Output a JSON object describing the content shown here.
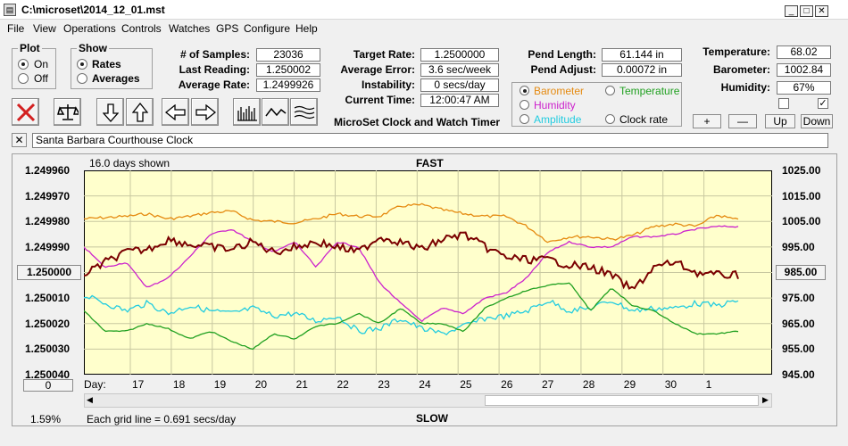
{
  "window": {
    "title": "C:\\microset\\2014_12_01.mst",
    "icon": "app-icon",
    "controls": [
      "_",
      "□",
      "✕"
    ]
  },
  "menu": [
    "File",
    "View",
    "Operations",
    "Controls",
    "Watches",
    "GPS",
    "Configure",
    "Help"
  ],
  "plot_group": {
    "title": "Plot",
    "options": [
      "On",
      "Off"
    ],
    "selected": "On"
  },
  "show_group": {
    "title": "Show",
    "options": [
      "Rates",
      "Averages"
    ],
    "selected": "Rates"
  },
  "stats": {
    "samples_label": "# of Samples:",
    "samples": "23036",
    "last_reading_label": "Last Reading:",
    "last_reading": "1.250002",
    "average_rate_label": "Average Rate:",
    "average_rate": "1.2499926",
    "target_rate_label": "Target Rate:",
    "target_rate": "1.2500000",
    "average_error_label": "Average Error:",
    "average_error": "3.6 sec/week",
    "instability_label": "Instability:",
    "instability": "0 secs/day",
    "current_time_label": "Current Time:",
    "current_time": "12:00:47 AM",
    "pend_length_label": "Pend Length:",
    "pend_length": "61.144 in",
    "pend_adjust_label": "Pend Adjust:",
    "pend_adjust": "0.00072 in",
    "temperature_label": "Temperature:",
    "temperature": "68.02",
    "barometer_label": "Barometer:",
    "barometer": "1002.84",
    "humidity_label": "Humidity:",
    "humidity": "67%"
  },
  "app_name": "MicroSet Clock and Watch Timer",
  "sensor_select": {
    "options": [
      {
        "label": "Barometer",
        "color": "#e58a10",
        "selected": true
      },
      {
        "label": "Temperature",
        "color": "#20a020",
        "selected": false
      },
      {
        "label": "Humidity",
        "color": "#cc22cc",
        "selected": false
      },
      {
        "label": "Amplitude",
        "color": "#22cce0",
        "selected": false
      },
      {
        "label": "Clock rate",
        "color": "#000000",
        "selected": false
      }
    ]
  },
  "scale_buttons": [
    "+",
    "—",
    "Up",
    "Down"
  ],
  "toolbar_icons": [
    "stop-icon",
    "balance-icon",
    "arrow-down-icon",
    "arrow-up-icon",
    "arrow-left-icon",
    "arrow-right-icon",
    "bars-icon",
    "wave-icon",
    "multi-wave-icon"
  ],
  "clock_name": "Santa Barbara Courthouse Clock",
  "chart_top_left": "16.0 days shown",
  "chart_top": "FAST",
  "chart_bottom": "SLOW",
  "chart_bottom_left": "Each grid line = 0.691 secs/day",
  "chart_percent": "1.59%",
  "left_box": "1.250000",
  "right_box": "985.00",
  "zero_button": "0",
  "day_label": "Day:",
  "colors": {
    "barometer": "#e58a10",
    "temperature": "#20a020",
    "humidity": "#cc22cc",
    "amplitude": "#22cce0",
    "rate": "#7a0000",
    "plot_bg": "#ffffcc"
  },
  "chart_data": {
    "type": "line",
    "x_label": "Day:",
    "x_ticks": [
      "17",
      "18",
      "19",
      "20",
      "21",
      "22",
      "23",
      "24",
      "25",
      "26",
      "27",
      "28",
      "29",
      "30",
      "1"
    ],
    "y_left_ticks": [
      "1.249960",
      "1.249970",
      "1.249980",
      "1.249990",
      "1.250000",
      "1.250010",
      "1.250020",
      "1.250030",
      "1.250040"
    ],
    "y_right_ticks": [
      "1025.00",
      "1015.00",
      "1005.00",
      "995.00",
      "985.00",
      "975.00",
      "965.00",
      "955.00",
      "945.00"
    ],
    "y_left_range": [
      1.24996,
      1.25004
    ],
    "y_right_range": [
      945,
      1025
    ],
    "series": [
      {
        "name": "Barometer",
        "color": "#e58a10",
        "values": [
          1006,
          1006.5,
          1007,
          1008,
          1006,
          1007,
          1008.5,
          1009,
          1005.5,
          1005,
          1004.5,
          1006,
          1008,
          1007,
          1007,
          1011,
          1011.5,
          1009.5,
          1008,
          1007,
          1007,
          1003,
          997,
          999,
          999,
          998,
          999.5,
          1003,
          1004,
          1003,
          1007.5,
          1005.5
        ]
      },
      {
        "name": "Humidity",
        "color": "#cc22cc",
        "values": [
          1.24999,
          1.249998,
          1.249996,
          1.250006,
          1.250002,
          1.249994,
          1.249985,
          1.249983,
          1.249988,
          1.249992,
          1.249988,
          1.249998,
          1.249988,
          1.24999,
          1.250004,
          1.250012,
          1.250019,
          1.250014,
          1.250016,
          1.25001,
          1.250008,
          1.250002,
          1.249992,
          1.249988,
          1.24999,
          1.24999,
          1.249986,
          1.249986,
          1.249985,
          1.249983,
          1.249982,
          1.249982
        ]
      },
      {
        "name": "Amplitude",
        "color": "#22cce0",
        "values": [
          1.250009,
          1.250012,
          1.250015,
          1.250012,
          1.250016,
          1.250013,
          1.250015,
          1.250016,
          1.250014,
          1.250017,
          1.250016,
          1.250019,
          1.250017,
          1.250023,
          1.250022,
          1.250018,
          1.250022,
          1.250024,
          1.250021,
          1.250018,
          1.250017,
          1.250015,
          1.250011,
          1.250015,
          1.250014,
          1.250011,
          1.250015,
          1.250014,
          1.250014,
          1.250012,
          1.250013,
          1.250011
        ]
      },
      {
        "name": "Temperature",
        "color": "#20a020",
        "values": [
          1.250015,
          1.250023,
          1.250023,
          1.25002,
          1.250022,
          1.250026,
          1.250023,
          1.250027,
          1.25003,
          1.250024,
          1.250026,
          1.250021,
          1.25002,
          1.250016,
          1.25002,
          1.250014,
          1.25002,
          1.25002,
          1.250023,
          1.250014,
          1.25001,
          1.250007,
          1.250005,
          1.250004,
          1.250015,
          1.250006,
          1.250013,
          1.250015,
          1.25002,
          1.250024,
          1.250024,
          1.250023
        ]
      },
      {
        "name": "Clock rate",
        "color": "#7a0000",
        "values": [
          1.250001,
          1.249996,
          1.249992,
          1.249991,
          1.249987,
          1.249989,
          1.24999,
          1.249991,
          1.249988,
          1.249992,
          1.24999,
          1.249988,
          1.24999,
          1.249992,
          1.249986,
          1.249988,
          1.249991,
          1.249987,
          1.249985,
          1.24999,
          1.249994,
          1.249995,
          1.249995,
          1.249997,
          1.249998,
          1.250001,
          1.250007,
          1.249998,
          1.249996,
          1.25,
          1.250001,
          1.250001
        ]
      }
    ]
  }
}
